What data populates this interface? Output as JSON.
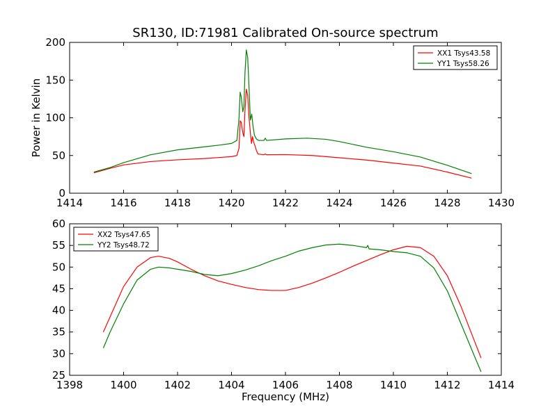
{
  "chart_data": {
    "suptitle": "SR130, ID:71981 Calibrated On-source spectrum",
    "charts": [
      {
        "type": "line",
        "ylabel": "Power in Kelvin",
        "xlabel": "",
        "xlim": [
          1414,
          1430
        ],
        "ylim": [
          0,
          200
        ],
        "xticks": [
          "1414",
          "1416",
          "1418",
          "1420",
          "1422",
          "1424",
          "1426",
          "1428",
          "1430"
        ],
        "yticks": [
          "0",
          "50",
          "100",
          "150",
          "200"
        ],
        "legend_position": "top-right",
        "series": [
          {
            "name": "XX1 Tsys43.58",
            "color": "#ff0000",
            "points": [
              [
                1414.9,
                27
              ],
              [
                1415.5,
                33
              ],
              [
                1416,
                37.5
              ],
              [
                1417,
                42
              ],
              [
                1418,
                44.3
              ],
              [
                1419,
                46
              ],
              [
                1419.6,
                47.5
              ],
              [
                1420.0,
                48.5
              ],
              [
                1420.2,
                50
              ],
              [
                1420.28,
                60
              ],
              [
                1420.32,
                96
              ],
              [
                1420.36,
                94
              ],
              [
                1420.42,
                80
              ],
              [
                1420.46,
                75
              ],
              [
                1420.5,
                110
              ],
              [
                1420.55,
                138
              ],
              [
                1420.6,
                130
              ],
              [
                1420.65,
                100
              ],
              [
                1420.7,
                80
              ],
              [
                1420.74,
                66
              ],
              [
                1420.78,
                75
              ],
              [
                1420.82,
                68
              ],
              [
                1420.88,
                62
              ],
              [
                1420.92,
                57
              ],
              [
                1420.98,
                52
              ],
              [
                1421.2,
                51
              ],
              [
                1421.25,
                52
              ],
              [
                1421.3,
                51
              ],
              [
                1422,
                51.2
              ],
              [
                1423,
                50
              ],
              [
                1424,
                47
              ],
              [
                1425,
                44
              ],
              [
                1426,
                40
              ],
              [
                1427,
                36
              ],
              [
                1428,
                28
              ],
              [
                1428.9,
                20
              ]
            ]
          },
          {
            "name": "YY1 Tsys58.26",
            "color": "#008000",
            "points": [
              [
                1414.9,
                28
              ],
              [
                1415.5,
                34
              ],
              [
                1416,
                40.5
              ],
              [
                1417,
                51
              ],
              [
                1418,
                57.5
              ],
              [
                1419,
                61.5
              ],
              [
                1419.6,
                64
              ],
              [
                1420.0,
                66
              ],
              [
                1420.2,
                70
              ],
              [
                1420.28,
                100
              ],
              [
                1420.32,
                134
              ],
              [
                1420.36,
                128
              ],
              [
                1420.42,
                108
              ],
              [
                1420.46,
                115
              ],
              [
                1420.5,
                160
              ],
              [
                1420.55,
                190
              ],
              [
                1420.6,
                180
              ],
              [
                1420.65,
                140
              ],
              [
                1420.7,
                97
              ],
              [
                1420.75,
                105
              ],
              [
                1420.8,
                88
              ],
              [
                1420.85,
                77
              ],
              [
                1420.92,
                72
              ],
              [
                1421.0,
                70
              ],
              [
                1421.2,
                70
              ],
              [
                1421.25,
                73
              ],
              [
                1421.3,
                70
              ],
              [
                1422,
                72
              ],
              [
                1422.8,
                73
              ],
              [
                1423.5,
                71.5
              ],
              [
                1424,
                68.5
              ],
              [
                1425,
                61
              ],
              [
                1426,
                55
              ],
              [
                1427,
                48
              ],
              [
                1428,
                37
              ],
              [
                1428.9,
                26
              ]
            ]
          }
        ]
      },
      {
        "type": "line",
        "ylabel": "",
        "xlabel": "Frequency (MHz)",
        "xlim": [
          1398,
          1414
        ],
        "ylim": [
          25,
          60
        ],
        "xticks": [
          "1398",
          "1400",
          "1402",
          "1404",
          "1406",
          "1408",
          "1410",
          "1412",
          "1414"
        ],
        "yticks": [
          "25",
          "30",
          "35",
          "40",
          "45",
          "50",
          "55",
          "60"
        ],
        "legend_position": "top-left",
        "series": [
          {
            "name": "XX2 Tsys47.65",
            "color": "#ff0000",
            "points": [
              [
                1399.25,
                35
              ],
              [
                1399.5,
                38.5
              ],
              [
                1400,
                45.5
              ],
              [
                1400.5,
                50
              ],
              [
                1401,
                52.2
              ],
              [
                1401.3,
                52.5
              ],
              [
                1401.7,
                52
              ],
              [
                1402,
                51.2
              ],
              [
                1402.5,
                49.5
              ],
              [
                1403,
                48
              ],
              [
                1403.5,
                46.8
              ],
              [
                1404,
                46
              ],
              [
                1404.5,
                45.3
              ],
              [
                1405,
                44.8
              ],
              [
                1405.5,
                44.6
              ],
              [
                1406,
                44.6
              ],
              [
                1406.5,
                45.3
              ],
              [
                1407,
                46.3
              ],
              [
                1407.5,
                47.5
              ],
              [
                1408,
                48.8
              ],
              [
                1408.5,
                50.2
              ],
              [
                1409,
                51.5
              ],
              [
                1409.5,
                52.8
              ],
              [
                1410,
                54
              ],
              [
                1410.5,
                54.8
              ],
              [
                1411,
                54.5
              ],
              [
                1411.5,
                52.5
              ],
              [
                1412,
                48
              ],
              [
                1412.5,
                41
              ],
              [
                1413,
                33
              ],
              [
                1413.25,
                29
              ]
            ]
          },
          {
            "name": "YY2 Tsys48.72",
            "color": "#008000",
            "points": [
              [
                1399.25,
                31.3
              ],
              [
                1399.5,
                35
              ],
              [
                1400,
                41.5
              ],
              [
                1400.5,
                47
              ],
              [
                1401,
                49.5
              ],
              [
                1401.3,
                50
              ],
              [
                1401.7,
                49.8
              ],
              [
                1402,
                49.5
              ],
              [
                1402.5,
                49
              ],
              [
                1403,
                48.3
              ],
              [
                1403.5,
                48
              ],
              [
                1404,
                48.5
              ],
              [
                1404.5,
                49.3
              ],
              [
                1405,
                50.3
              ],
              [
                1405.5,
                51.5
              ],
              [
                1406,
                52.5
              ],
              [
                1406.5,
                53.7
              ],
              [
                1407,
                54.5
              ],
              [
                1407.5,
                55.1
              ],
              [
                1408,
                55.3
              ],
              [
                1408.5,
                55
              ],
              [
                1409,
                54.5
              ],
              [
                1409.05,
                55
              ],
              [
                1409.1,
                54.2
              ],
              [
                1409.5,
                54
              ],
              [
                1410,
                53.6
              ],
              [
                1410.5,
                53.3
              ],
              [
                1411,
                52.5
              ],
              [
                1411.5,
                49.8
              ],
              [
                1412,
                44.5
              ],
              [
                1412.5,
                37
              ],
              [
                1413,
                29.5
              ],
              [
                1413.25,
                25.8
              ]
            ]
          }
        ]
      }
    ]
  }
}
